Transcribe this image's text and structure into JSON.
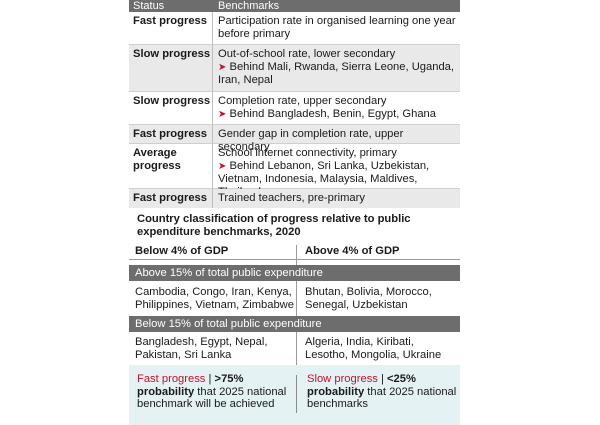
{
  "table": {
    "header": {
      "status": "Status",
      "benchmarks": "Benchmarks"
    },
    "rows": [
      {
        "status": "Fast progress",
        "lines": [
          "Participation rate in organised learning one year",
          "before primary"
        ]
      },
      {
        "status": "Slow progress",
        "lines": [
          "Out-of-school rate, lower secondary"
        ],
        "behind": [
          "Behind Mali, Rwanda, Sierra Leone, Uganda,",
          "Iran, Nepal"
        ]
      },
      {
        "status": "Slow progress",
        "lines": [
          "Completion rate, upper secondary"
        ],
        "behind": [
          "Behind Bangladesh, Benin, Egypt, Ghana"
        ]
      },
      {
        "status": "Fast progress",
        "lines": [
          "Gender gap in completion rate, upper secondary"
        ]
      },
      {
        "status_lines": [
          "Average",
          "progress"
        ],
        "lines": [
          "School internet connectivity, primary"
        ],
        "behind": [
          "Behind Lebanon, Sri Lanka, Uzbekistan,",
          "Vietnam, Indonesia, Malaysia, Maldives, Thailand"
        ]
      },
      {
        "status": "Fast progress",
        "lines": [
          "Trained teachers, pre-primary"
        ]
      }
    ]
  },
  "classification": {
    "title_lines": [
      "Country classification of progress relative to public",
      "expenditure benchmarks, 2020"
    ],
    "below_gdp": "Below 4% of GDP",
    "above_gdp": "Above 4% of GDP",
    "band_above": "Above 15% of total public expenditure",
    "band_below": "Below 15% of total public expenditure",
    "above_left": [
      "Cambodia, Congo, Iran, Kenya,",
      "Philippines, Vietnam, Zimbabwe"
    ],
    "above_right": [
      "Bhutan, Bolivia, Morocco,",
      "Senegal, Uzbekistan"
    ],
    "below_left": [
      "Bangladesh, Egypt, Nepal,",
      "Pakistan, Sri Lanka"
    ],
    "below_right": [
      "Algeria, India, Kiribati,",
      "Lesotho, Mongolia, Ukraine"
    ]
  },
  "legend": {
    "fast": {
      "label": "Fast progress",
      "sep": " | ",
      "value": ">75%",
      "bold": "probability",
      "rest1": " that 2025 national",
      "rest2": "benchmark will be achieved"
    },
    "slow": {
      "label": "Slow progress",
      "sep": " | ",
      "value": "<25%",
      "bold": "probability",
      "rest1": " that 2025 national",
      "rest2": "benchmarks"
    }
  },
  "colors": {
    "header_bg": "#6d6d6d",
    "shade": "#e9e9e9",
    "accent_red": "#c8102e",
    "footer_bg": "#e4f2f4"
  },
  "icons": {
    "bullet": "arrowhead-right-icon"
  }
}
